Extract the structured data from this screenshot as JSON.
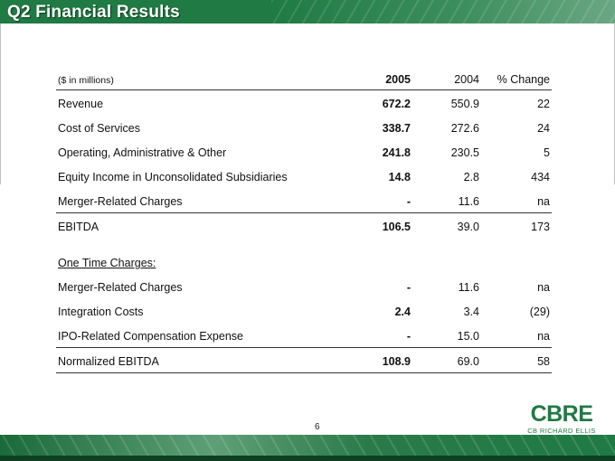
{
  "title": "Q2 Financial Results",
  "table": {
    "header": {
      "label": "($ in millions)",
      "y2005": "2005",
      "y2004": "2004",
      "change": "% Change"
    },
    "rows": [
      {
        "label": "Revenue",
        "y2005": "672.2",
        "y2004": "550.9",
        "change": "22"
      },
      {
        "label": "Cost of Services",
        "y2005": "338.7",
        "y2004": "272.6",
        "change": "24"
      },
      {
        "label": "Operating, Administrative & Other",
        "y2005": "241.8",
        "y2004": "230.5",
        "change": "5"
      },
      {
        "label": "Equity Income in Unconsolidated Subsidiaries",
        "y2005": "14.8",
        "y2004": "2.8",
        "change": "434"
      },
      {
        "label": "Merger-Related Charges",
        "y2005": "-",
        "y2004": "11.6",
        "change": "na"
      },
      {
        "label": "EBITDA",
        "y2005": "106.5",
        "y2004": "39.0",
        "change": "173"
      },
      {
        "label": "One Time Charges:",
        "y2005": "",
        "y2004": "",
        "change": ""
      },
      {
        "label": "Merger-Related Charges",
        "y2005": "-",
        "y2004": "11.6",
        "change": "na"
      },
      {
        "label": "Integration Costs",
        "y2005": "2.4",
        "y2004": "3.4",
        "change": "(29)"
      },
      {
        "label": "IPO-Related Compensation Expense",
        "y2005": "-",
        "y2004": "15.0",
        "change": "na"
      },
      {
        "label": "Normalized EBITDA",
        "y2005": "108.9",
        "y2004": "69.0",
        "change": "58"
      }
    ]
  },
  "page_number": "6",
  "logo": {
    "mark": "CBRE",
    "sub": "CB RICHARD ELLIS"
  },
  "colors": {
    "brand_green": "#1f7a43"
  }
}
